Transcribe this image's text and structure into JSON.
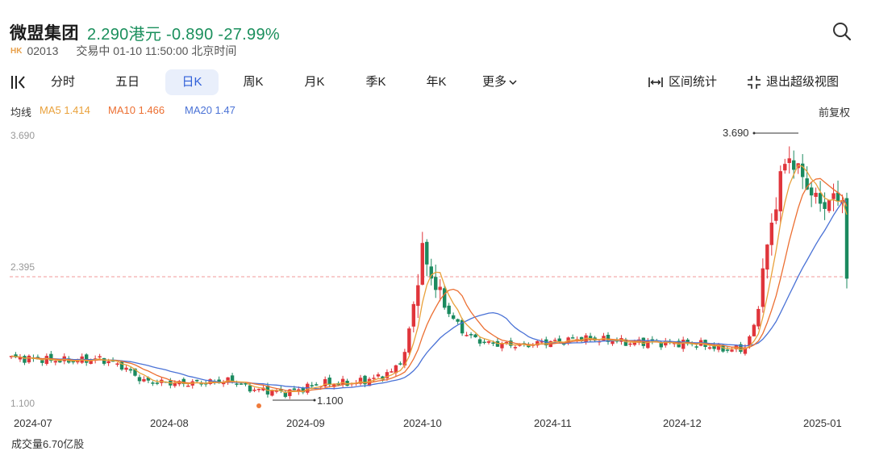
{
  "header": {
    "title": "微盟集团",
    "price_line": "2.290港元 -0.890 -27.99%",
    "market_badge": "HK",
    "code": "02013",
    "status": "交易中 01-10 11:50:00 北京时间"
  },
  "tabs": [
    "分时",
    "五日",
    "日K",
    "周K",
    "月K",
    "季K",
    "年K",
    "更多"
  ],
  "active_tab": "日K",
  "tools": {
    "range_stats": "区间统计",
    "exit_fullscreen": "退出超级视图"
  },
  "indicators": {
    "label": "均线",
    "ma5": "MA5 1.414",
    "ma10": "MA10 1.466",
    "ma20": "MA20 1.47",
    "adjust": "前复权"
  },
  "colors": {
    "up": "#e0353b",
    "down": "#1b8a5f",
    "ma5": "#e9a13b",
    "ma10": "#ec6f32",
    "ma20": "#4a72d6",
    "active_tab": "#2f5fd8"
  },
  "chart_data": {
    "type": "candlestick",
    "y_axis_labels": [
      "3.690",
      "2.395",
      "1.100"
    ],
    "ylim": [
      1.1,
      3.69
    ],
    "x_tick_labels": [
      "2024-07",
      "2024-08",
      "2024-09",
      "2024-10",
      "2024-11",
      "2024-12",
      "2025-01"
    ],
    "annotations": {
      "high": "3.690",
      "low": "1.100"
    },
    "reference_price": 2.29,
    "last_value": 2.29
  },
  "volume_label": "成交量6.70亿股"
}
